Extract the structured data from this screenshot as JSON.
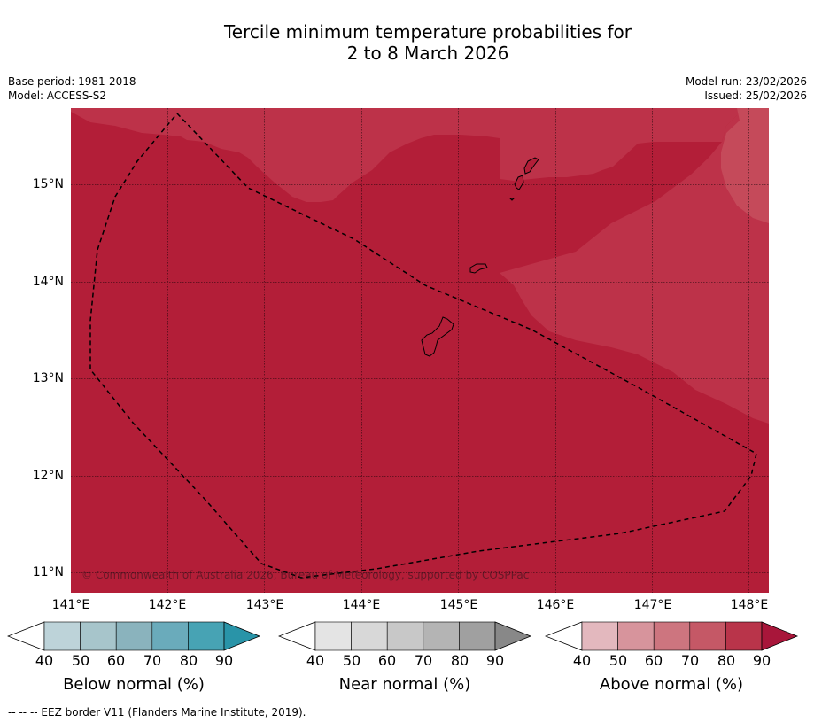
{
  "title": {
    "line1": "Tercile minimum temperature probabilities for",
    "line2": "2 to 8 March 2026"
  },
  "meta": {
    "base_period": "Base period: 1981-2018",
    "model": "Model: ACCESS-S2",
    "model_run": "Model run: 23/02/2026",
    "issued": "Issued: 25/02/2026"
  },
  "map": {
    "lat_labels": [
      "15°N",
      "14°N",
      "13°N",
      "12°N",
      "11°N"
    ],
    "lon_labels": [
      "141°E",
      "142°E",
      "143°E",
      "144°E",
      "145°E",
      "146°E",
      "147°E",
      "148°E"
    ],
    "copyright": "© Commonwealth of Australia 2026, Bureau of Meteorology, supported by COSPPac",
    "colors": {
      "above_80_90": "#b31e38",
      "above_70_80": "#bd3249",
      "above_60_70": "#c54a5a"
    }
  },
  "colorbars": [
    {
      "label": "Below normal (%)",
      "ticks": [
        "40",
        "50",
        "60",
        "70",
        "80",
        "90"
      ],
      "colors": [
        "#ffffff",
        "#bdd3d9",
        "#a7c5cb",
        "#8ab3bd",
        "#6aabbb",
        "#47a3b4",
        "#2994a8"
      ]
    },
    {
      "label": "Near normal (%)",
      "ticks": [
        "40",
        "50",
        "60",
        "70",
        "80",
        "90"
      ],
      "colors": [
        "#ffffff",
        "#e4e4e4",
        "#d8d8d8",
        "#c8c8c8",
        "#b4b4b4",
        "#a0a0a0",
        "#888888"
      ]
    },
    {
      "label": "Above normal (%)",
      "ticks": [
        "40",
        "50",
        "60",
        "70",
        "80",
        "90"
      ],
      "colors": [
        "#ffffff",
        "#e3b8be",
        "#d7949c",
        "#cd757f",
        "#c55866",
        "#b9344a",
        "#a8163a"
      ]
    }
  ],
  "footnote": "--  --  -- EEZ border V11 (Flanders Marine Institute, 2019)."
}
